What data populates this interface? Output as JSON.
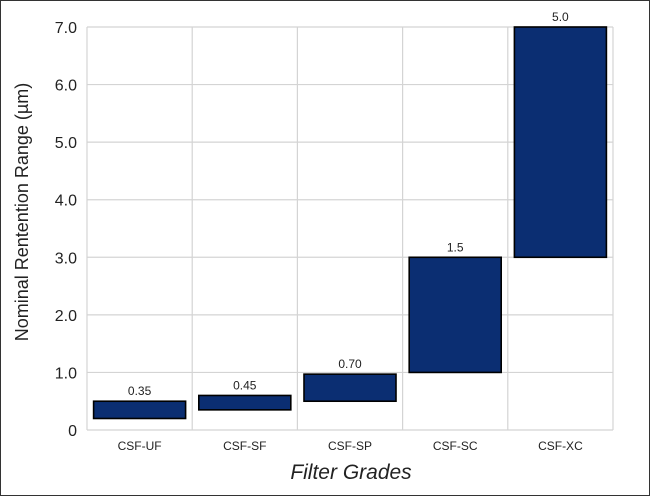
{
  "chart_data": {
    "type": "bar",
    "subtype": "floating-range",
    "title": "",
    "xlabel": "Filter Grades",
    "ylabel": "Nominal Rentention Range (µm)",
    "ylim": [
      0,
      7.0
    ],
    "yticks": [
      "0",
      "1.0",
      "2.0",
      "3.0",
      "4.0",
      "5.0",
      "6.0",
      "7.0"
    ],
    "ytick_values": [
      0,
      1,
      2,
      3,
      4,
      5,
      6,
      7
    ],
    "grid": true,
    "legend": "none",
    "bar_color": "#0b2e72",
    "categories": [
      "CSF-UF",
      "CSF-SF",
      "CSF-SP",
      "CSF-SC",
      "CSF-XC"
    ],
    "ranges": [
      {
        "low": 0.2,
        "high": 0.5
      },
      {
        "low": 0.35,
        "high": 0.6
      },
      {
        "low": 0.5,
        "high": 0.97
      },
      {
        "low": 1.0,
        "high": 3.0
      },
      {
        "low": 3.0,
        "high": 7.0
      }
    ],
    "data_labels": [
      "0.35",
      "0.45",
      "0.70",
      "1.5",
      "5.0"
    ]
  }
}
